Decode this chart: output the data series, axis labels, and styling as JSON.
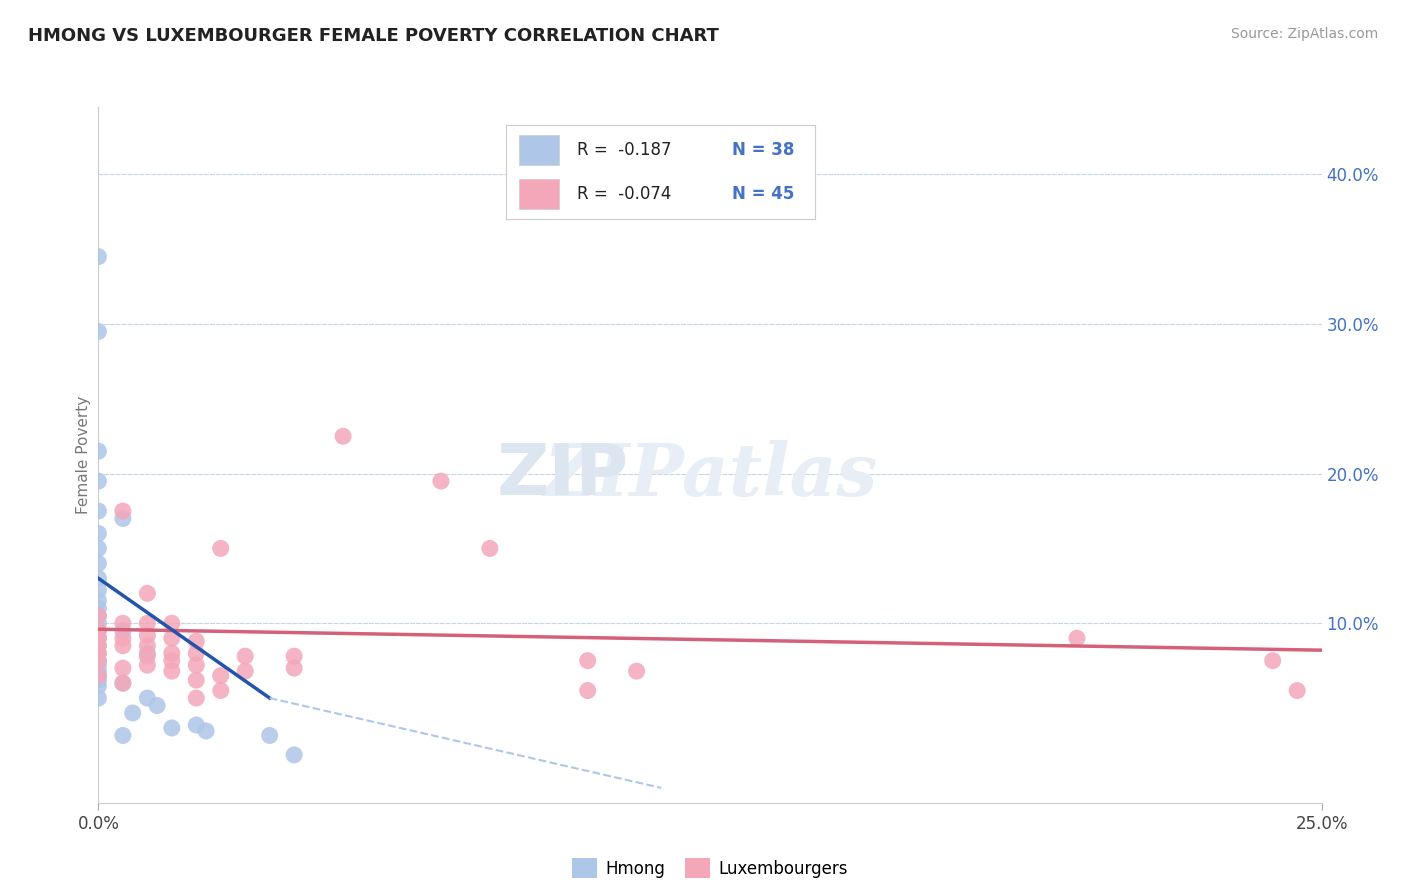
{
  "title": "HMONG VS LUXEMBOURGER FEMALE POVERTY CORRELATION CHART",
  "source": "Source: ZipAtlas.com",
  "ylabel": "Female Poverty",
  "right_yticks": [
    "40.0%",
    "30.0%",
    "20.0%",
    "10.0%"
  ],
  "right_ytick_vals": [
    0.4,
    0.3,
    0.2,
    0.1
  ],
  "xlim": [
    0.0,
    0.25
  ],
  "ylim": [
    -0.02,
    0.445
  ],
  "legend_hmong_R": "-0.187",
  "legend_hmong_N": "38",
  "legend_lux_R": "-0.074",
  "legend_lux_N": "45",
  "hmong_color": "#aec6e8",
  "lux_color": "#f4a7b9",
  "hmong_line_color": "#2255aa",
  "lux_line_color": "#d4607a",
  "dashed_color": "#aec6e8",
  "background_color": "#ffffff",
  "grid_color": "#c8d4e8",
  "hmong_scatter": [
    [
      0.0,
      0.345
    ],
    [
      0.0,
      0.295
    ],
    [
      0.0,
      0.215
    ],
    [
      0.0,
      0.195
    ],
    [
      0.0,
      0.175
    ],
    [
      0.0,
      0.16
    ],
    [
      0.0,
      0.15
    ],
    [
      0.0,
      0.14
    ],
    [
      0.0,
      0.13
    ],
    [
      0.0,
      0.122
    ],
    [
      0.0,
      0.115
    ],
    [
      0.0,
      0.11
    ],
    [
      0.0,
      0.105
    ],
    [
      0.0,
      0.1
    ],
    [
      0.0,
      0.095
    ],
    [
      0.0,
      0.09
    ],
    [
      0.0,
      0.085
    ],
    [
      0.0,
      0.08
    ],
    [
      0.0,
      0.075
    ],
    [
      0.0,
      0.072
    ],
    [
      0.0,
      0.068
    ],
    [
      0.0,
      0.065
    ],
    [
      0.0,
      0.062
    ],
    [
      0.0,
      0.058
    ],
    [
      0.0,
      0.05
    ],
    [
      0.005,
      0.17
    ],
    [
      0.005,
      0.095
    ],
    [
      0.005,
      0.06
    ],
    [
      0.007,
      0.04
    ],
    [
      0.01,
      0.08
    ],
    [
      0.01,
      0.05
    ],
    [
      0.012,
      0.045
    ],
    [
      0.015,
      0.03
    ],
    [
      0.02,
      0.032
    ],
    [
      0.022,
      0.028
    ],
    [
      0.035,
      0.025
    ],
    [
      0.04,
      0.012
    ],
    [
      0.005,
      0.025
    ]
  ],
  "lux_scatter": [
    [
      0.0,
      0.105
    ],
    [
      0.0,
      0.095
    ],
    [
      0.0,
      0.09
    ],
    [
      0.0,
      0.085
    ],
    [
      0.0,
      0.08
    ],
    [
      0.0,
      0.075
    ],
    [
      0.0,
      0.065
    ],
    [
      0.005,
      0.175
    ],
    [
      0.005,
      0.1
    ],
    [
      0.005,
      0.09
    ],
    [
      0.005,
      0.085
    ],
    [
      0.005,
      0.07
    ],
    [
      0.005,
      0.06
    ],
    [
      0.01,
      0.12
    ],
    [
      0.01,
      0.1
    ],
    [
      0.01,
      0.092
    ],
    [
      0.01,
      0.085
    ],
    [
      0.01,
      0.078
    ],
    [
      0.01,
      0.072
    ],
    [
      0.015,
      0.1
    ],
    [
      0.015,
      0.09
    ],
    [
      0.015,
      0.08
    ],
    [
      0.015,
      0.075
    ],
    [
      0.015,
      0.068
    ],
    [
      0.02,
      0.088
    ],
    [
      0.02,
      0.08
    ],
    [
      0.02,
      0.072
    ],
    [
      0.02,
      0.062
    ],
    [
      0.02,
      0.05
    ],
    [
      0.025,
      0.15
    ],
    [
      0.025,
      0.065
    ],
    [
      0.025,
      0.055
    ],
    [
      0.03,
      0.078
    ],
    [
      0.03,
      0.068
    ],
    [
      0.04,
      0.078
    ],
    [
      0.04,
      0.07
    ],
    [
      0.05,
      0.225
    ],
    [
      0.07,
      0.195
    ],
    [
      0.08,
      0.15
    ],
    [
      0.1,
      0.075
    ],
    [
      0.1,
      0.055
    ],
    [
      0.11,
      0.068
    ],
    [
      0.2,
      0.09
    ],
    [
      0.24,
      0.075
    ],
    [
      0.245,
      0.055
    ]
  ]
}
